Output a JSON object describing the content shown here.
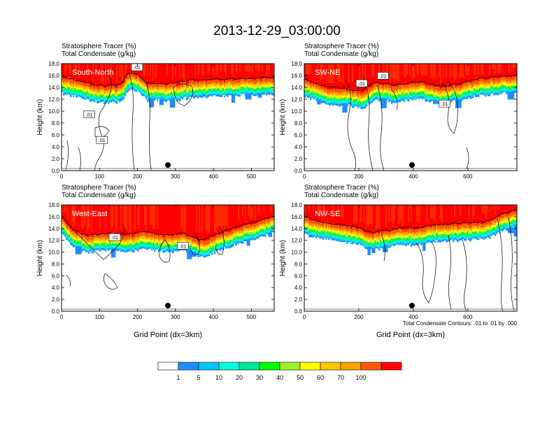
{
  "title": "2013-12-29_03:00:00",
  "panel_header": {
    "line1": "Stratosphere Tracer   (%)",
    "line2": "Total Condensate   (g/kg)"
  },
  "contour_note": "Total Condensate Contours: .01 to .01 by .000",
  "colors": [
    "#ffffff",
    "#1e8cff",
    "#00c8ff",
    "#00ffdc",
    "#00e696",
    "#00ff00",
    "#a0f032",
    "#ffff00",
    "#ffc800",
    "#ffa000",
    "#ff5a00",
    "#ff0000"
  ],
  "chart_data": [
    {
      "type": "heatmap",
      "panel_label": "South-North",
      "ylabel": "Height (km)",
      "xlabel": "",
      "xlim": [
        0,
        560
      ],
      "xticks": [
        0,
        100,
        200,
        300,
        400,
        500
      ],
      "ylim": [
        0,
        18
      ],
      "yticks": [
        "0.0",
        "2.0",
        "4.0",
        "6.0",
        "8.0",
        "10.0",
        "12.0",
        "14.0",
        "16.0",
        "18.0"
      ],
      "contour_labels": [
        ".01",
        ".01",
        ".01"
      ],
      "marker_x": 280
    },
    {
      "type": "heatmap",
      "panel_label": "SW-NE",
      "ylabel": "Height (km)",
      "xlabel": "",
      "xlim": [
        0,
        780
      ],
      "xticks": [
        0,
        200,
        400,
        600
      ],
      "ylim": [
        0,
        18
      ],
      "yticks": [
        "0.0",
        "2.0",
        "4.0",
        "6.0",
        "8.0",
        "10.0",
        "12.0",
        "14.0",
        "16.0",
        "18.0"
      ],
      "contour_labels": [
        ".01",
        ".01",
        ".01"
      ],
      "marker_x": 395
    },
    {
      "type": "heatmap",
      "panel_label": "West-East",
      "ylabel": "Height (km)",
      "xlabel": "Grid Point (dx=3km)",
      "xlim": [
        0,
        560
      ],
      "xticks": [
        0,
        100,
        200,
        300,
        400,
        500
      ],
      "ylim": [
        0,
        18
      ],
      "yticks": [
        "0.0",
        "2.0",
        "4.0",
        "6.0",
        "8.0",
        "10.0",
        "12.0",
        "14.0",
        "16.0",
        "18.0"
      ],
      "contour_labels": [
        ".01",
        ".01"
      ],
      "marker_x": 280
    },
    {
      "type": "heatmap",
      "panel_label": "NW-SE",
      "ylabel": "Height (km)",
      "xlabel": "Grid Point (dx=3km)",
      "xlim": [
        0,
        780
      ],
      "xticks": [
        0,
        200,
        400,
        600
      ],
      "ylim": [
        0,
        18
      ],
      "yticks": [
        "0.0",
        "2.0",
        "4.0",
        "6.0",
        "8.0",
        "10.0",
        "12.0",
        "14.0",
        "16.0",
        "18.0"
      ],
      "contour_labels": [],
      "marker_x": 395
    }
  ],
  "colorbar": {
    "labels": [
      "1",
      "5",
      "10",
      "20",
      "30",
      "40",
      "50",
      "60",
      "70",
      "100"
    ]
  }
}
